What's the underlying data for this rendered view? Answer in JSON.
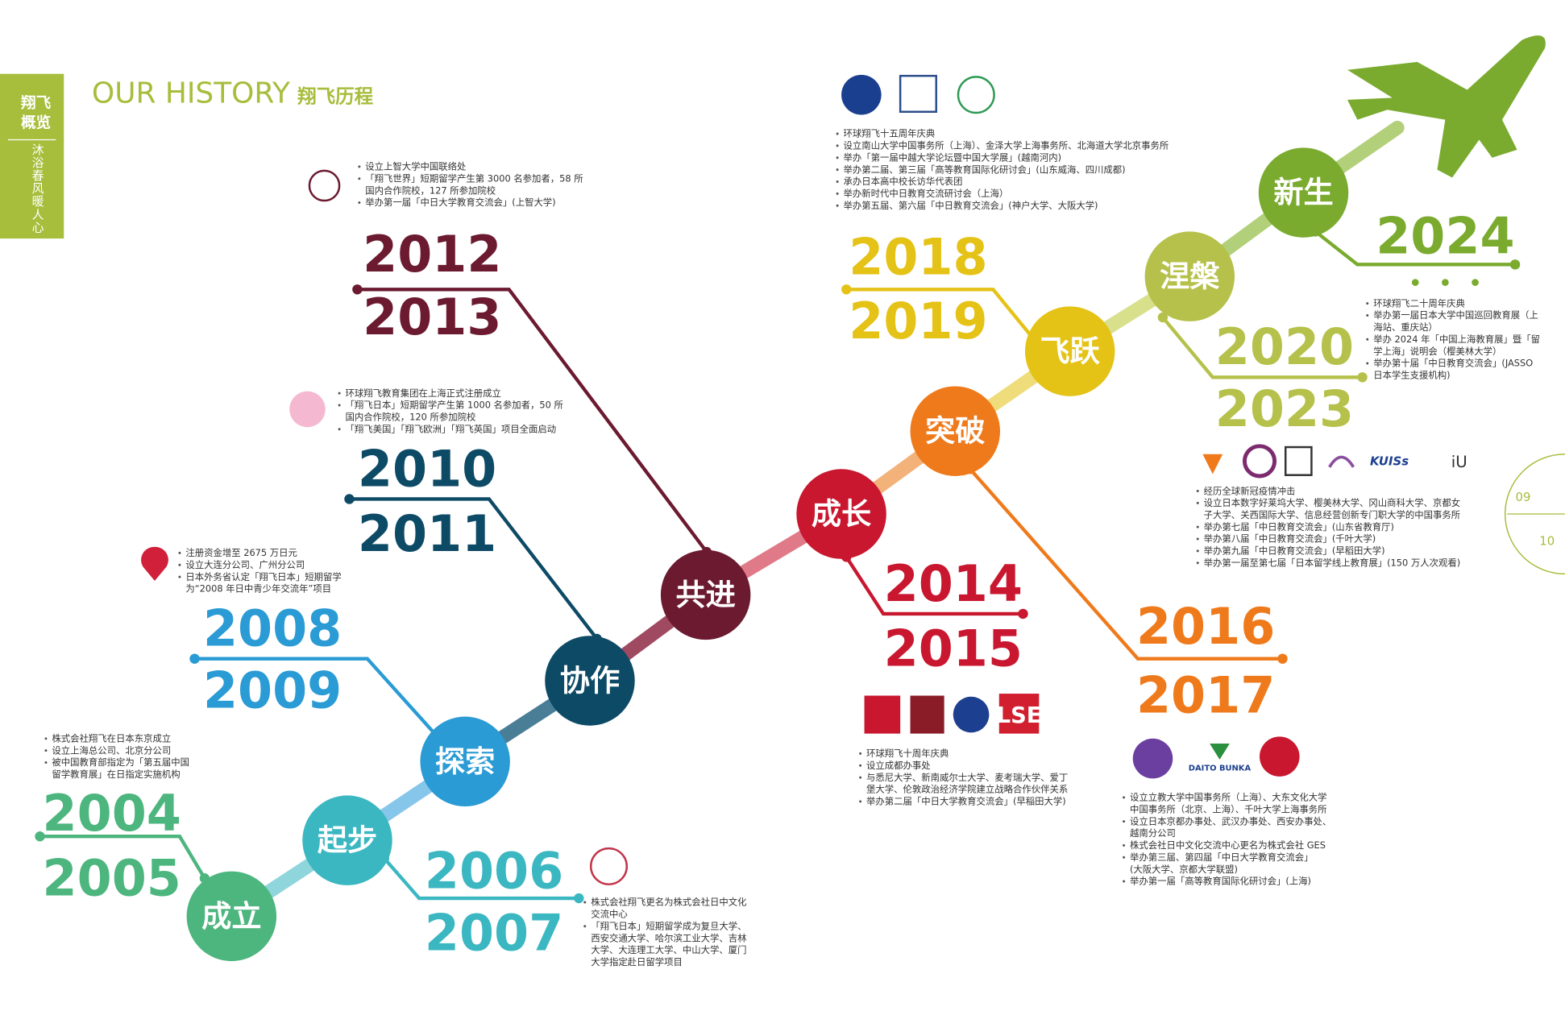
{
  "header": {
    "title": "OUR HISTORY",
    "title_cn": "翔飞历程"
  },
  "sidebar": {
    "section": "翔飞概览",
    "slogan": "沐浴春风暖人心",
    "pages": [
      "09",
      "10"
    ]
  },
  "milestones": [
    {
      "word": "成立",
      "color": "#4db57e",
      "years": [
        "2004",
        "2005"
      ],
      "items": [
        [
          "株式会社翔飞在日本东京成立"
        ],
        [
          "设立上海总公司、北京分公司"
        ],
        [
          "被中国教育部指定为「第五届中国",
          "留学教育展」在日指定实施机构"
        ]
      ]
    },
    {
      "word": "起步",
      "color": "#3bb7c2",
      "years": [
        "2006",
        "2007"
      ],
      "items": [
        [
          "株式会社翔飞更名为株式会社日中文化",
          "交流中心"
        ],
        [
          "「翔飞日本」短期留学成为复旦大学、",
          "西安交通大学、哈尔滨工业大学、吉林",
          "大学、大连理工大学、中山大学、厦门",
          "大学指定赴日留学项目"
        ]
      ]
    },
    {
      "word": "探索",
      "color": "#2a9bd4",
      "years": [
        "2008",
        "2009"
      ],
      "items": [
        [
          "注册资金增至 2675 万日元"
        ],
        [
          "设立大连分公司、广州分公司"
        ],
        [
          "日本外务省认定「翔飞日本」短期留学",
          "为“2008 年日中青少年交流年”项目"
        ]
      ]
    },
    {
      "word": "协作",
      "color": "#0d4a66",
      "years": [
        "2010",
        "2011"
      ],
      "items": [
        [
          "环球翔飞教育集团在上海正式注册成立"
        ],
        [
          "「翔飞日本」短期留学产生第 1000 名参加者，50 所",
          "国内合作院校，120 所参加院校"
        ],
        [
          "「翔飞美国」「翔飞欧洲」「翔飞英国」项目全面启动"
        ]
      ]
    },
    {
      "word": "共进",
      "color": "#6b1a30",
      "years": [
        "2012",
        "2013"
      ],
      "items": [
        [
          "设立上智大学中国联络处"
        ],
        [
          "「翔飞世界」短期留学产生第 3000 名参加者，58 所",
          "国内合作院校，127 所参加院校"
        ],
        [
          "举办第一届「中日大学教育交流会」(上智大学)"
        ]
      ]
    },
    {
      "word": "成长",
      "color": "#c8172f",
      "years": [
        "2014",
        "2015"
      ],
      "items": [
        [
          "环球翔飞十周年庆典"
        ],
        [
          "设立成都办事处"
        ],
        [
          "与悉尼大学、新南威尔士大学、麦考瑞大学、爱丁",
          "堡大学、伦敦政治经济学院建立战略合作伙伴关系"
        ],
        [
          "举办第二届「中日大学教育交流会」(早稲田大学)"
        ]
      ]
    },
    {
      "word": "突破",
      "color": "#ef7a1b",
      "years": [
        "2016",
        "2017"
      ],
      "items": [
        [
          "设立立教大学中国事务所（上海）、大东文化大学",
          "中国事务所（北京、上海）、千叶大学上海事务所"
        ],
        [
          "设立日本京都办事处、武汉办事处、西安办事处、",
          "越南分公司"
        ],
        [
          "株式会社日中文化交流中心更名为株式会社 GES"
        ],
        [
          "举办第三届、第四届「中日大学教育交流会」",
          "(大阪大学、京都大学联盟)"
        ],
        [
          "举办第一届「高等教育国际化研讨会」(上海)"
        ]
      ]
    },
    {
      "word": "飞跃",
      "color": "#e5c216",
      "years": [
        "2018",
        "2019"
      ],
      "items": [
        [
          "环球翔飞十五周年庆典"
        ],
        [
          "设立南山大学中国事务所（上海）、金泽大学上海事务所、北海道大学北京事务所"
        ],
        [
          "举办「第一届中越大学论坛暨中国大学展」(越南河内)"
        ],
        [
          "举办第二届、第三届「高等教育国际化研讨会」(山东威海、四川成都)"
        ],
        [
          "承办日本高中校长访华代表团"
        ],
        [
          "举办新时代中日教育交流研讨会（上海）"
        ],
        [
          "举办第五届、第六届「中日教育交流会」(神户大学、大阪大学)"
        ]
      ]
    },
    {
      "word": "涅槃",
      "color": "#b5c14a",
      "years": [
        "2020",
        "2023"
      ],
      "items": [
        [
          "经历全球新冠疫情冲击"
        ],
        [
          "设立日本数字好莱坞大学、樱美林大学、冈山商科大学、京都女",
          "子大学、关西国际大学、信息经营创新专门职大学的中国事务所"
        ],
        [
          "举办第七届「中日教育交流会」(山东省教育厅)"
        ],
        [
          "举办第八届「中日教育交流会」(千叶大学)"
        ],
        [
          "举办第九届「中日教育交流会」(早稻田大学)"
        ],
        [
          "举办第一届至第七届「日本留学线上教育展」(150 万人次观看)"
        ]
      ]
    },
    {
      "word": "新生",
      "color": "#7aab2f",
      "years": [
        "2024"
      ],
      "items": [
        [
          "环球翔飞二十周年庆典"
        ],
        [
          "举办第一届日本大学中国巡回教育展（上",
          "海站、重庆站）"
        ],
        [
          "举办 2024 年「中国上海教育展」暨「留",
          "学上海」说明会（樱美林大学）"
        ],
        [
          "举办第十届「中日教育交流会」(JASSO",
          "日本学生支援机构)"
        ]
      ]
    }
  ],
  "logos": [
    "LSE",
    "KUISs",
    "iU",
    "DAITO BUNKA"
  ]
}
